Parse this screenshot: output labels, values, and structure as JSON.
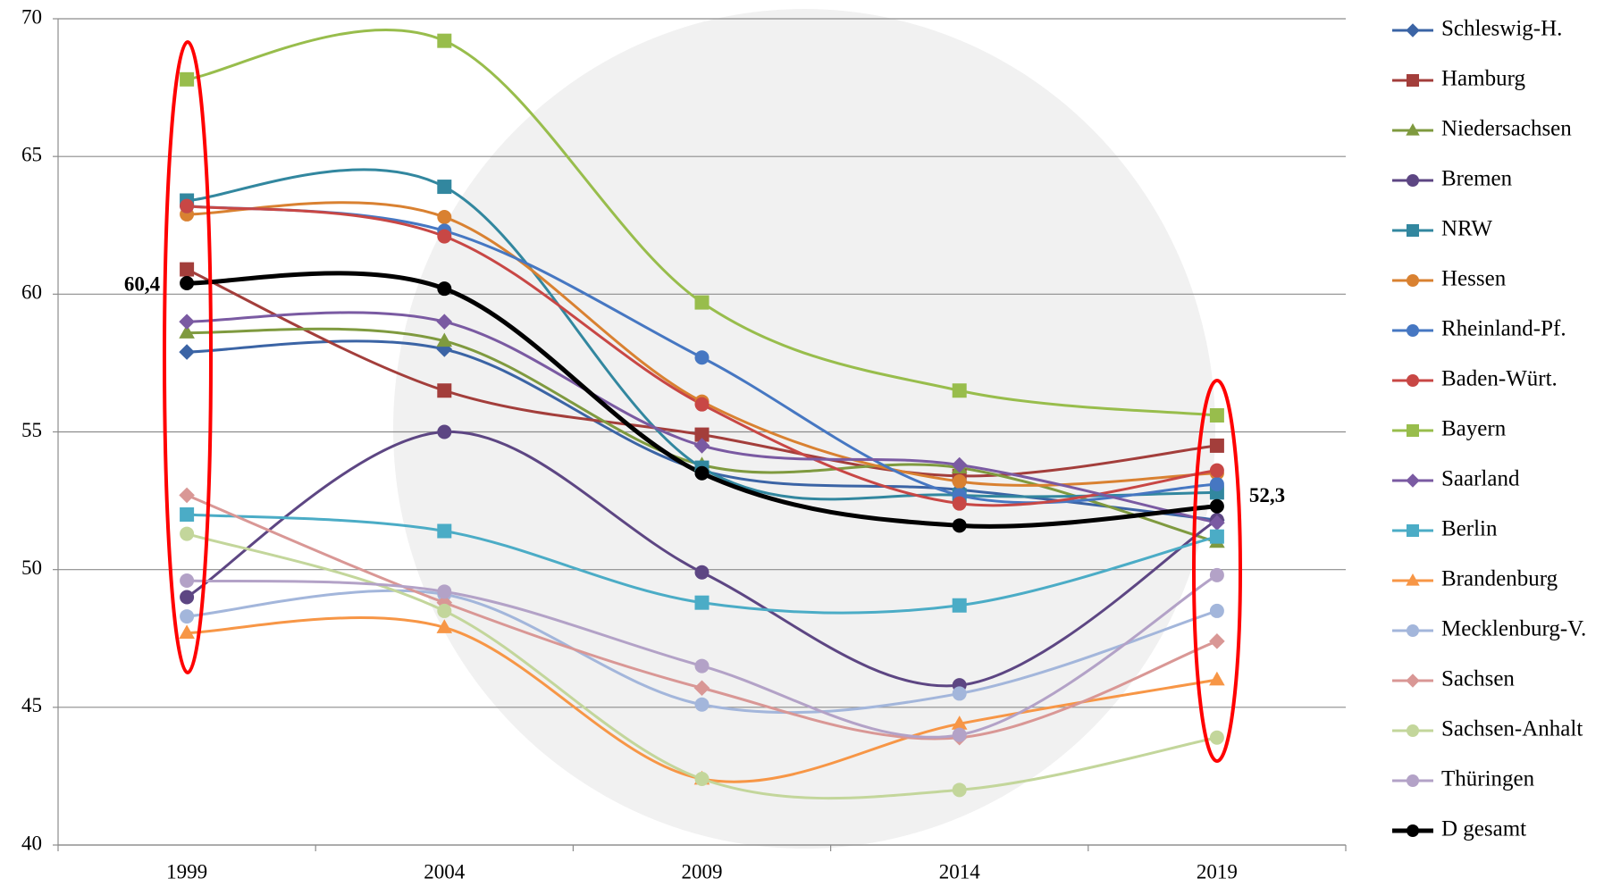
{
  "chart_data": {
    "type": "line",
    "categories": [
      "1999",
      "2004",
      "2009",
      "2014",
      "2019"
    ],
    "ylim": [
      40,
      70
    ],
    "yticks": [
      40,
      45,
      50,
      55,
      60,
      65,
      70
    ],
    "grid": true,
    "smooth": true,
    "legend": "right",
    "series": [
      {
        "name": "Schleswig-H.",
        "color": "#3b64a5",
        "marker": "diamond",
        "values": [
          57.9,
          58.0,
          53.6,
          52.9,
          51.8
        ]
      },
      {
        "name": "Hamburg",
        "color": "#a33e3b",
        "marker": "square",
        "values": [
          60.9,
          56.5,
          54.9,
          53.4,
          54.5
        ]
      },
      {
        "name": "Niedersachsen",
        "color": "#7f9a3f",
        "marker": "triangle",
        "values": [
          58.6,
          58.3,
          53.8,
          53.7,
          51.0
        ]
      },
      {
        "name": "Bremen",
        "color": "#5d4683",
        "marker": "circle",
        "values": [
          49.0,
          55.0,
          49.9,
          45.8,
          51.8
        ]
      },
      {
        "name": "NRW",
        "color": "#32879f",
        "marker": "square",
        "values": [
          63.4,
          63.9,
          53.7,
          52.7,
          52.8
        ]
      },
      {
        "name": "Hessen",
        "color": "#d98131",
        "marker": "circle",
        "values": [
          62.9,
          62.8,
          56.1,
          53.2,
          53.5
        ]
      },
      {
        "name": "Rheinland-Pf.",
        "color": "#4677c2",
        "marker": "circle",
        "values": [
          63.2,
          62.3,
          57.7,
          52.7,
          53.1
        ]
      },
      {
        "name": "Baden-Würt.",
        "color": "#c84745",
        "marker": "circle",
        "values": [
          63.2,
          62.1,
          56.0,
          52.4,
          53.6
        ]
      },
      {
        "name": "Bayern",
        "color": "#98bd4c",
        "marker": "square",
        "values": [
          67.8,
          69.2,
          59.7,
          56.5,
          55.6
        ]
      },
      {
        "name": "Saarland",
        "color": "#7a5aa2",
        "marker": "diamond",
        "values": [
          59.0,
          59.0,
          54.5,
          53.8,
          51.7
        ]
      },
      {
        "name": "Berlin",
        "color": "#4bacc6",
        "marker": "square",
        "values": [
          52.0,
          51.4,
          48.8,
          48.7,
          51.2
        ]
      },
      {
        "name": "Brandenburg",
        "color": "#f79646",
        "marker": "triangle",
        "values": [
          47.7,
          47.9,
          42.4,
          44.4,
          46.0
        ]
      },
      {
        "name": "Mecklenburg-V.",
        "color": "#a3b6db",
        "marker": "circle",
        "values": [
          48.3,
          49.1,
          45.1,
          45.5,
          48.5
        ]
      },
      {
        "name": "Sachsen",
        "color": "#d99795",
        "marker": "diamond",
        "values": [
          52.7,
          48.8,
          45.7,
          43.9,
          47.4
        ]
      },
      {
        "name": "Sachsen-Anhalt",
        "color": "#c3d69b",
        "marker": "circle",
        "values": [
          51.3,
          48.5,
          42.4,
          42.0,
          43.9
        ]
      },
      {
        "name": "Thüringen",
        "color": "#b3a2c7",
        "marker": "circle",
        "values": [
          49.6,
          49.2,
          46.5,
          44.0,
          49.8
        ]
      },
      {
        "name": "D gesamt",
        "color": "#000000",
        "marker": "circle",
        "values": [
          60.4,
          60.2,
          53.5,
          51.6,
          52.3
        ],
        "value_labels": [
          "60,4",
          null,
          null,
          null,
          "52,3"
        ]
      }
    ]
  }
}
